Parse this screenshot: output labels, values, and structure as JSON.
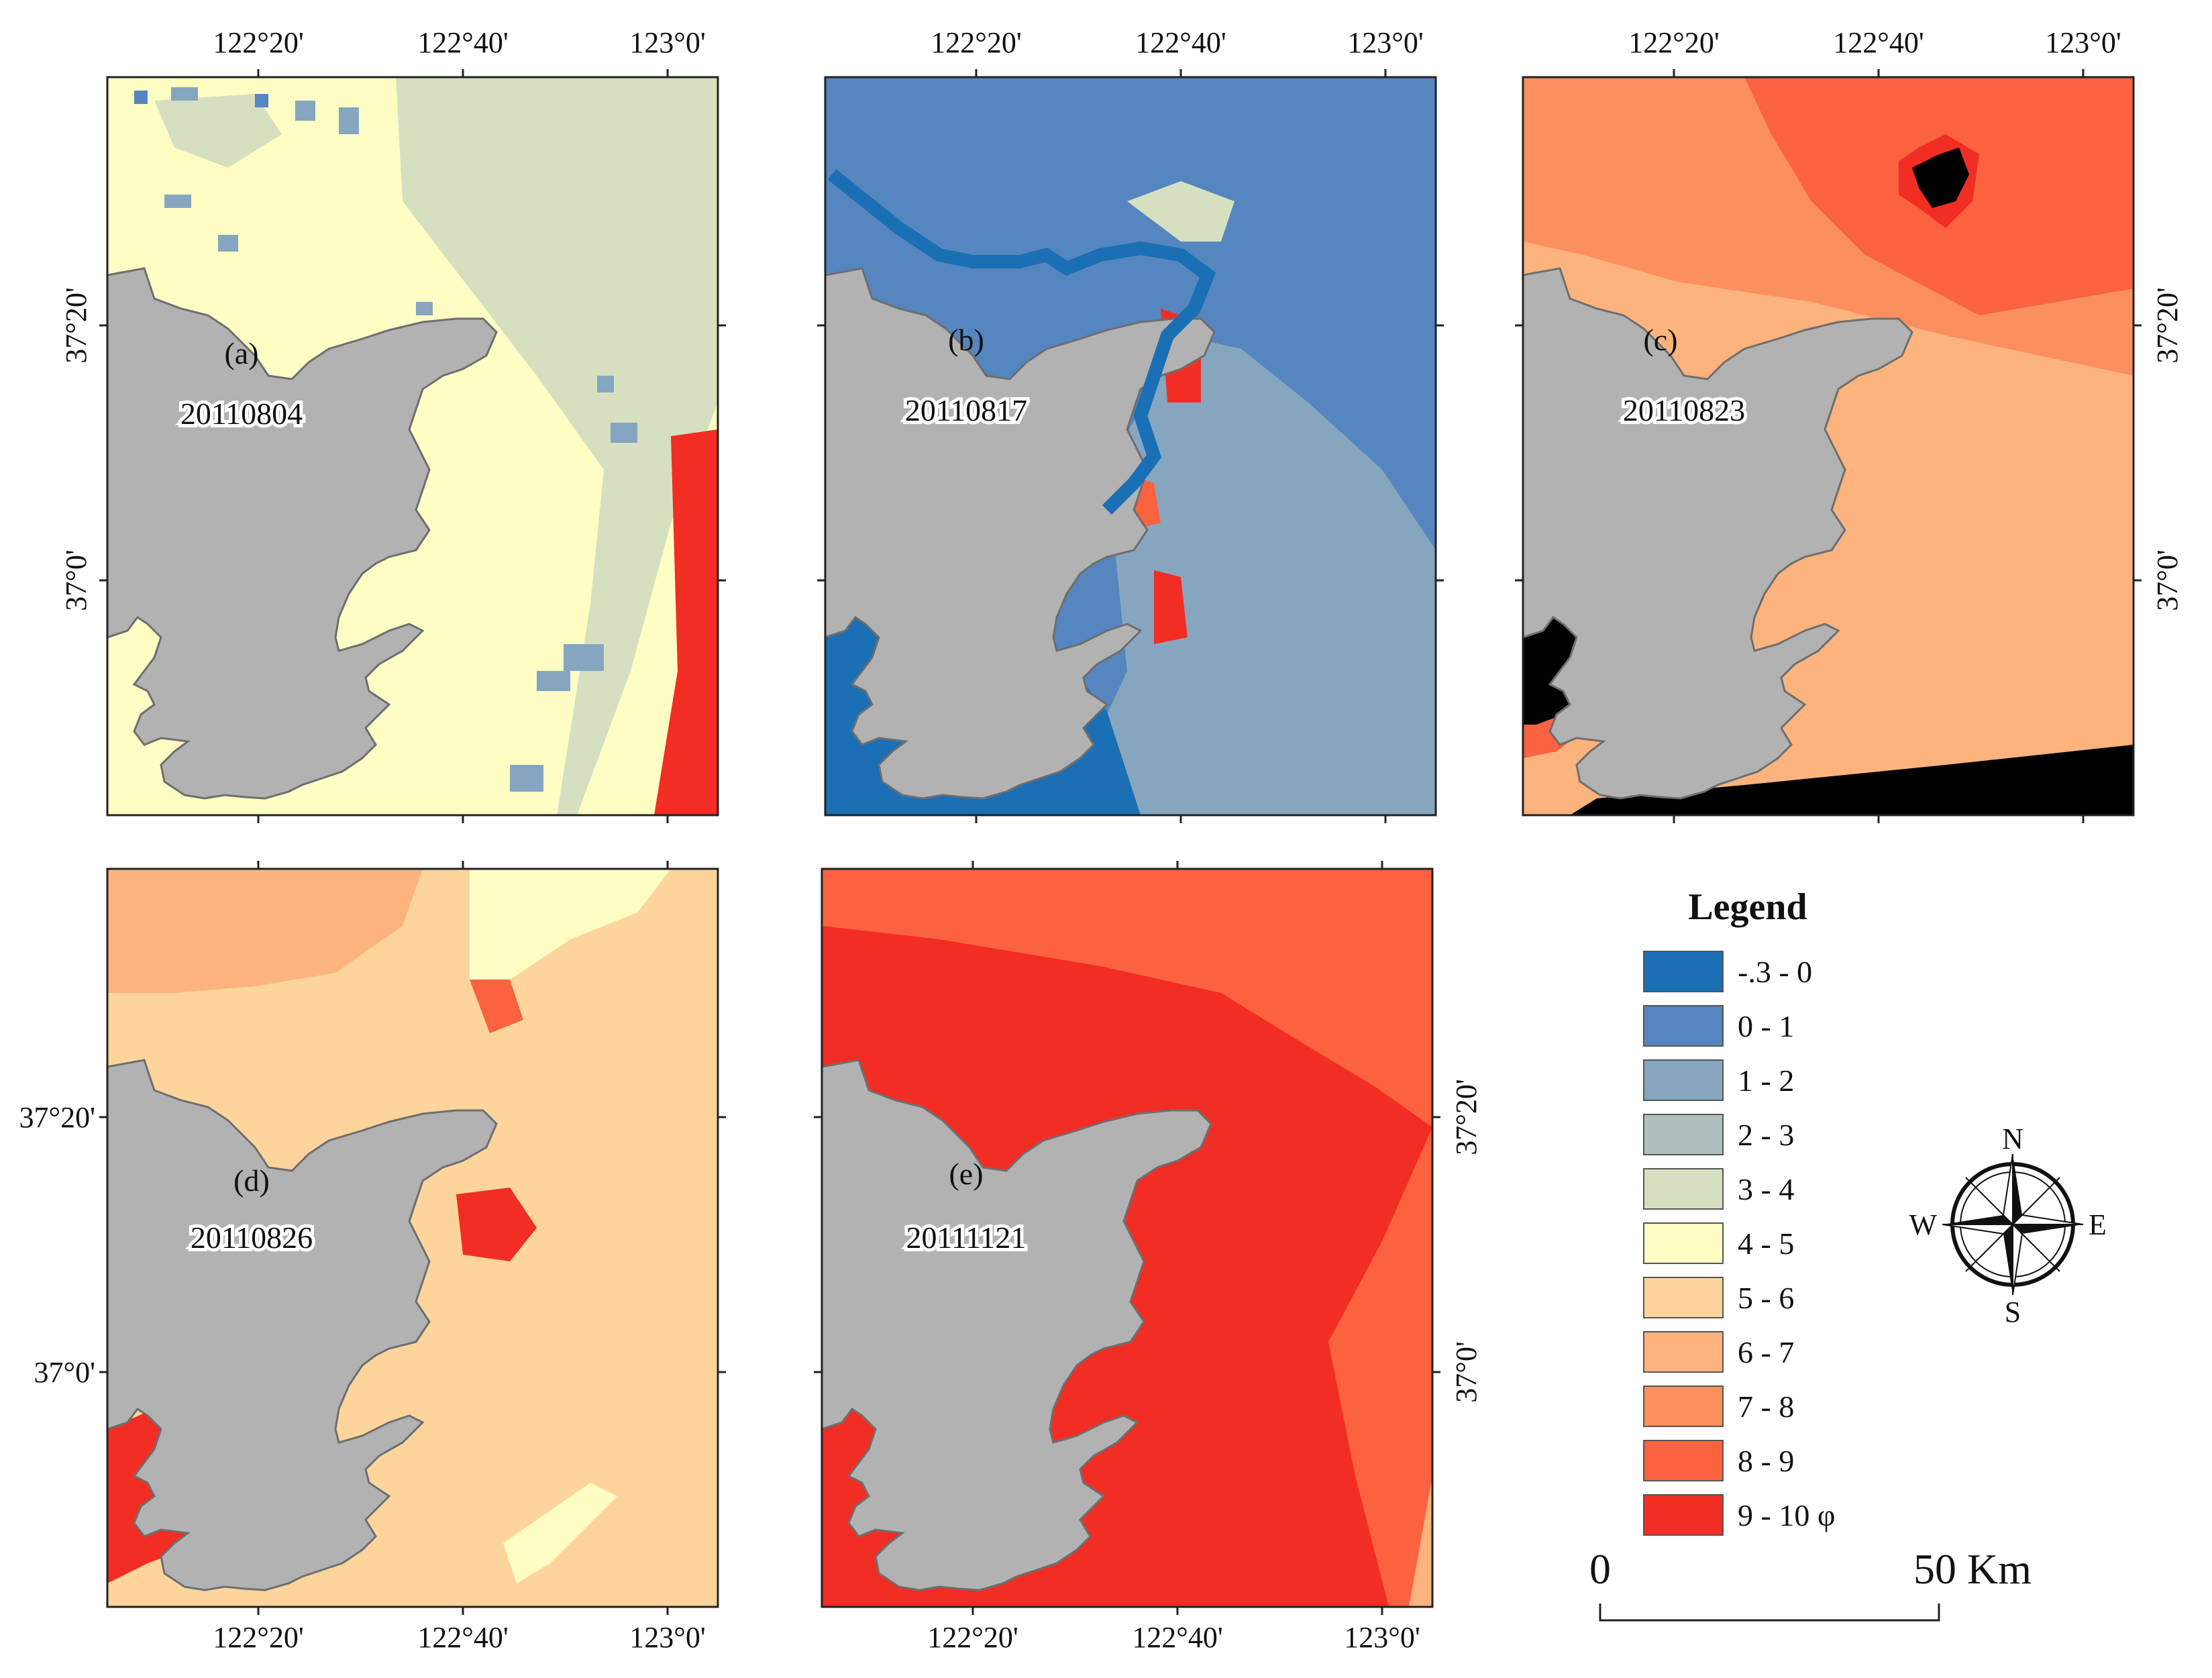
{
  "panels": [
    {
      "id": "a",
      "label": "(a)",
      "date": "20110804"
    },
    {
      "id": "b",
      "label": "(b)",
      "date": "20110817"
    },
    {
      "id": "c",
      "label": "(c)",
      "date": "20110823"
    },
    {
      "id": "d",
      "label": "(d)",
      "date": "20110826"
    },
    {
      "id": "e",
      "label": "(e)",
      "date": "20111121"
    }
  ],
  "axes": {
    "longitude_ticks": [
      "122°20'",
      "122°40'",
      "123°0'"
    ],
    "latitude_ticks": [
      "37°20'",
      "37°0'"
    ]
  },
  "legend": {
    "title": "Legend",
    "classes": [
      {
        "label": "-.3 - 0",
        "color": "#1a6fb5"
      },
      {
        "label": "0 - 1",
        "color": "#5586bf"
      },
      {
        "label": "1 - 2",
        "color": "#86a6c0"
      },
      {
        "label": "2 - 3",
        "color": "#aebfbd"
      },
      {
        "label": "3 - 4",
        "color": "#d6e0c0"
      },
      {
        "label": "4 - 5",
        "color": "#fefdc4"
      },
      {
        "label": "5 - 6",
        "color": "#fdd59c"
      },
      {
        "label": "6 - 7",
        "color": "#fdb37d"
      },
      {
        "label": "7 - 8",
        "color": "#fc8f5e"
      },
      {
        "label": "8 - 9",
        "color": "#fa6240"
      },
      {
        "label": "9 - 10 φ",
        "color": "#f22d23"
      }
    ]
  },
  "scale_bar": {
    "start": "0",
    "end": "50 Km"
  },
  "compass": {
    "n": "N",
    "s": "S",
    "e": "E",
    "w": "W"
  },
  "colors": {
    "land": "#b2b2b2",
    "land_outline": "#6e6e6e",
    "nodata": "#000000"
  }
}
